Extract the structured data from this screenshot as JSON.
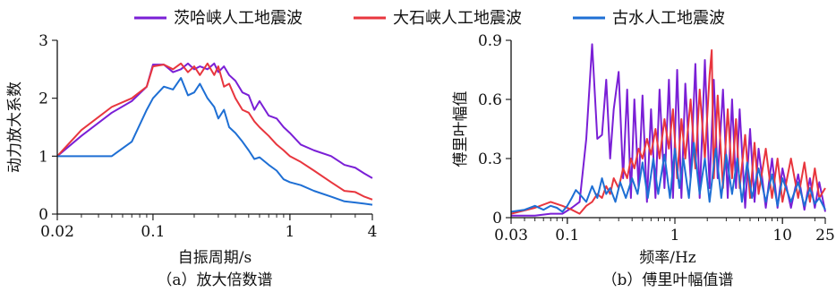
{
  "colors": {
    "purple": "#7a1fd6",
    "red": "#e8363e",
    "blue": "#1e6fd4"
  },
  "legend": {
    "items": [
      {
        "label": "茨哈峡人工地震波",
        "color": "#7a1fd6"
      },
      {
        "label": "大石峡人工地震波",
        "color": "#e8363e"
      },
      {
        "label": "古水人工地震波",
        "color": "#1e6fd4"
      }
    ]
  },
  "chart_data": [
    {
      "type": "line",
      "caption": "（a）放大倍数谱",
      "xlabel": "自振周期/s",
      "ylabel": "动力放大系数",
      "xscale": "log",
      "xlim": [
        0.02,
        4
      ],
      "ylim": [
        0,
        3
      ],
      "xticks": [
        0.02,
        0.1,
        1,
        4
      ],
      "xtick_labels": [
        "0.02",
        "0.1",
        "1",
        "4"
      ],
      "yticks": [
        0,
        1,
        2,
        3
      ],
      "ytick_labels": [
        "0",
        "1",
        "2",
        "3"
      ],
      "grid": false,
      "series": [
        {
          "name": "茨哈峡人工地震波",
          "color": "#7a1fd6",
          "x": [
            0.02,
            0.03,
            0.05,
            0.07,
            0.09,
            0.1,
            0.12,
            0.14,
            0.16,
            0.18,
            0.2,
            0.22,
            0.25,
            0.28,
            0.3,
            0.33,
            0.36,
            0.4,
            0.45,
            0.5,
            0.55,
            0.6,
            0.7,
            0.8,
            0.9,
            1.0,
            1.2,
            1.5,
            2.0,
            2.5,
            3.0,
            3.5,
            4.0
          ],
          "y": [
            1.0,
            1.35,
            1.75,
            1.95,
            2.2,
            2.58,
            2.58,
            2.45,
            2.5,
            2.6,
            2.5,
            2.55,
            2.5,
            2.6,
            2.45,
            2.55,
            2.4,
            2.3,
            2.1,
            2.05,
            1.8,
            1.95,
            1.7,
            1.65,
            1.5,
            1.4,
            1.2,
            1.1,
            1.0,
            0.85,
            0.8,
            0.7,
            0.62
          ]
        },
        {
          "name": "大石峡人工地震波",
          "color": "#e8363e",
          "x": [
            0.02,
            0.03,
            0.05,
            0.07,
            0.09,
            0.1,
            0.12,
            0.14,
            0.16,
            0.18,
            0.2,
            0.22,
            0.25,
            0.28,
            0.3,
            0.33,
            0.36,
            0.4,
            0.45,
            0.5,
            0.55,
            0.6,
            0.7,
            0.8,
            0.9,
            1.0,
            1.2,
            1.5,
            2.0,
            2.5,
            3.0,
            3.5,
            4.0
          ],
          "y": [
            1.0,
            1.45,
            1.85,
            2.0,
            2.2,
            2.55,
            2.58,
            2.5,
            2.6,
            2.45,
            2.55,
            2.4,
            2.6,
            2.4,
            2.55,
            2.2,
            2.25,
            2.0,
            1.8,
            1.75,
            1.6,
            1.5,
            1.35,
            1.2,
            1.1,
            1.0,
            0.9,
            0.75,
            0.55,
            0.4,
            0.38,
            0.3,
            0.25
          ]
        },
        {
          "name": "古水人工地震波",
          "color": "#1e6fd4",
          "x": [
            0.02,
            0.03,
            0.04,
            0.05,
            0.07,
            0.09,
            0.1,
            0.12,
            0.14,
            0.16,
            0.18,
            0.2,
            0.22,
            0.25,
            0.28,
            0.3,
            0.33,
            0.36,
            0.4,
            0.45,
            0.5,
            0.55,
            0.6,
            0.7,
            0.8,
            0.9,
            1.0,
            1.2,
            1.5,
            2.0,
            2.5,
            3.0,
            3.5,
            4.0
          ],
          "y": [
            1.0,
            1.0,
            1.0,
            1.0,
            1.25,
            1.8,
            2.0,
            2.2,
            2.15,
            2.35,
            2.05,
            2.1,
            2.25,
            2.0,
            1.85,
            1.65,
            1.8,
            1.5,
            1.4,
            1.25,
            1.1,
            0.95,
            0.98,
            0.85,
            0.75,
            0.6,
            0.55,
            0.5,
            0.4,
            0.3,
            0.22,
            0.2,
            0.18,
            0.16
          ]
        }
      ]
    },
    {
      "type": "line",
      "caption": "（b）傅里叶幅值谱",
      "xlabel": "频率/Hz",
      "ylabel": "傅里叶幅值",
      "xscale": "log",
      "xlim": [
        0.03,
        25
      ],
      "ylim": [
        0,
        0.9
      ],
      "xticks": [
        0.03,
        0.1,
        1,
        10,
        25
      ],
      "xtick_labels": [
        "0.03",
        "0.1",
        "1",
        "10",
        "25"
      ],
      "yticks": [
        0,
        0.3,
        0.6,
        0.9
      ],
      "ytick_labels": [
        "0",
        "0.3",
        "0.6",
        "0.9"
      ],
      "grid": false,
      "series": [
        {
          "name": "茨哈峡人工地震波",
          "color": "#7a1fd6",
          "x": [
            0.03,
            0.05,
            0.07,
            0.09,
            0.11,
            0.13,
            0.15,
            0.17,
            0.19,
            0.21,
            0.23,
            0.25,
            0.27,
            0.3,
            0.33,
            0.36,
            0.39,
            0.42,
            0.46,
            0.5,
            0.55,
            0.6,
            0.66,
            0.72,
            0.8,
            0.88,
            0.96,
            1.05,
            1.15,
            1.25,
            1.4,
            1.55,
            1.7,
            1.9,
            2.1,
            2.3,
            2.5,
            2.8,
            3.1,
            3.4,
            3.7,
            4.0,
            4.5,
            5.0,
            5.5,
            6.0,
            7.0,
            8.0,
            9.0,
            10,
            12,
            14,
            16,
            18,
            20,
            22,
            25
          ],
          "y": [
            0.01,
            0.01,
            0.02,
            0.02,
            0.05,
            0.08,
            0.4,
            0.88,
            0.4,
            0.42,
            0.7,
            0.3,
            0.55,
            0.74,
            0.2,
            0.65,
            0.1,
            0.6,
            0.15,
            0.62,
            0.08,
            0.55,
            0.1,
            0.65,
            0.15,
            0.7,
            0.1,
            0.75,
            0.1,
            0.68,
            0.2,
            0.78,
            0.1,
            0.8,
            0.15,
            0.7,
            0.2,
            0.65,
            0.1,
            0.6,
            0.15,
            0.55,
            0.05,
            0.45,
            0.08,
            0.35,
            0.05,
            0.3,
            0.05,
            0.25,
            0.05,
            0.22,
            0.04,
            0.2,
            0.05,
            0.18,
            0.03
          ]
        },
        {
          "name": "大石峡人工地震波",
          "color": "#e8363e",
          "x": [
            0.03,
            0.05,
            0.07,
            0.09,
            0.11,
            0.13,
            0.15,
            0.17,
            0.19,
            0.21,
            0.23,
            0.25,
            0.27,
            0.3,
            0.33,
            0.36,
            0.39,
            0.42,
            0.46,
            0.5,
            0.55,
            0.6,
            0.66,
            0.72,
            0.8,
            0.88,
            0.96,
            1.05,
            1.15,
            1.25,
            1.4,
            1.55,
            1.7,
            1.9,
            2.1,
            2.2,
            2.3,
            2.5,
            2.8,
            3.1,
            3.4,
            3.7,
            4.0,
            4.5,
            5.0,
            5.5,
            6.0,
            7.0,
            8.0,
            9.0,
            10,
            12,
            14,
            16,
            18,
            20,
            22,
            25
          ],
          "y": [
            0.02,
            0.05,
            0.08,
            0.06,
            0.04,
            0.02,
            0.06,
            0.08,
            0.12,
            0.1,
            0.16,
            0.12,
            0.2,
            0.15,
            0.25,
            0.2,
            0.3,
            0.25,
            0.35,
            0.3,
            0.4,
            0.32,
            0.45,
            0.3,
            0.5,
            0.35,
            0.55,
            0.2,
            0.5,
            0.3,
            0.6,
            0.25,
            0.65,
            0.3,
            0.72,
            0.85,
            0.2,
            0.62,
            0.15,
            0.55,
            0.2,
            0.5,
            0.15,
            0.42,
            0.1,
            0.38,
            0.12,
            0.35,
            0.1,
            0.3,
            0.08,
            0.3,
            0.1,
            0.28,
            0.08,
            0.25,
            0.1,
            0.15
          ]
        },
        {
          "name": "古水人工地震波",
          "color": "#1e6fd4",
          "x": [
            0.03,
            0.04,
            0.05,
            0.06,
            0.07,
            0.08,
            0.09,
            0.1,
            0.11,
            0.12,
            0.13,
            0.15,
            0.17,
            0.19,
            0.21,
            0.23,
            0.25,
            0.28,
            0.31,
            0.35,
            0.4,
            0.45,
            0.5,
            0.56,
            0.63,
            0.7,
            0.8,
            0.9,
            1.0,
            1.1,
            1.2,
            1.35,
            1.5,
            1.7,
            1.9,
            2.1,
            2.4,
            2.7,
            3.0,
            3.4,
            3.8,
            4.2,
            4.7,
            5.2,
            6.0,
            7.0,
            8.0,
            9.0,
            10,
            12,
            14,
            16,
            18,
            20,
            22,
            25
          ],
          "y": [
            0.03,
            0.04,
            0.06,
            0.04,
            0.06,
            0.05,
            0.03,
            0.06,
            0.1,
            0.14,
            0.12,
            0.08,
            0.16,
            0.1,
            0.2,
            0.12,
            0.15,
            0.08,
            0.18,
            0.1,
            0.2,
            0.12,
            0.28,
            0.1,
            0.3,
            0.12,
            0.32,
            0.1,
            0.35,
            0.15,
            0.3,
            0.1,
            0.38,
            0.12,
            0.3,
            0.08,
            0.35,
            0.1,
            0.32,
            0.12,
            0.3,
            0.08,
            0.28,
            0.1,
            0.25,
            0.08,
            0.22,
            0.06,
            0.2,
            0.08,
            0.18,
            0.06,
            0.15,
            0.07,
            0.1,
            0.04
          ]
        }
      ]
    }
  ]
}
